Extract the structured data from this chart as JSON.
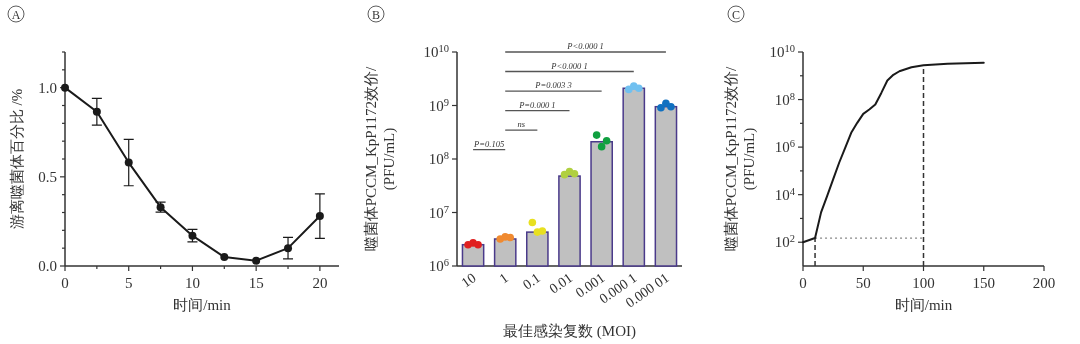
{
  "chart_data": [
    {
      "type": "line",
      "title": "A",
      "xlabel": "时间/min",
      "ylabel": "游离噬菌体百分比 /%",
      "x": [
        0,
        2.5,
        5,
        7.5,
        10,
        12.5,
        15,
        17.5,
        20
      ],
      "series": [
        {
          "color": "#1a1a1a",
          "values": [
            1.0,
            0.865,
            0.58,
            0.33,
            0.17,
            0.05,
            0.03,
            0.1,
            0.28
          ],
          "errors": [
            null,
            0.075,
            0.13,
            0.028,
            0.035,
            null,
            null,
            0.06,
            0.125
          ]
        }
      ],
      "xlim": [
        0,
        21.5
      ],
      "ylim": [
        0,
        1.2
      ],
      "xticks": [
        0,
        {
          "value": 2.5,
          "label": null
        },
        5,
        {
          "value": 7.5,
          "label": null
        },
        10,
        {
          "value": 12.5,
          "label": null
        },
        15,
        {
          "value": 17.5,
          "label": null
        },
        20
      ],
      "yticks": [
        {
          "value": 0,
          "label": "0.0"
        },
        {
          "value": 0.1,
          "label": null
        },
        {
          "value": 0.2,
          "label": null
        },
        {
          "value": 0.3,
          "label": null
        },
        {
          "value": 0.4,
          "label": null
        },
        0.5,
        {
          "value": 0.6,
          "label": null
        },
        {
          "value": 0.7,
          "label": null
        },
        {
          "value": 0.8,
          "label": null
        },
        {
          "value": 0.9,
          "label": null
        },
        {
          "value": 1.0,
          "label": "1.0"
        },
        {
          "value": 1.1,
          "label": null
        },
        {
          "value": 1.2,
          "label": null
        }
      ],
      "marker": "circle"
    },
    {
      "type": "bar",
      "title": "B",
      "xlabel": "最佳感染复数 (MOI)",
      "ylabel": "噬菌体PCCM_KpP1172效价/\n(PFU/mL)",
      "categories": [
        "10",
        "1",
        "0.1",
        "0.01",
        "0.001",
        "0.000 1",
        "0.000 01"
      ],
      "series": [
        {
          "type": "bar",
          "color": "#c0c0c0",
          "values": [
            2500000,
            3200000,
            4300000,
            48000000,
            210000000,
            2100000000,
            950000000
          ]
        },
        {
          "type": "scatter",
          "x": [
            "10",
            "10",
            "10",
            "1",
            "1",
            "1",
            "0.1",
            "0.1",
            "0.1",
            "0.01",
            "0.01",
            "0.01",
            "0.001",
            "0.001",
            "0.001",
            "0.000 1",
            "0.000 1",
            "0.000 1",
            "0.000 01",
            "0.000 01",
            "0.000 01"
          ],
          "values": [
            2500000,
            2700000,
            2500000,
            3200000,
            3500000,
            3400000,
            6500000,
            4300000,
            4500000,
            51000000,
            58000000,
            53000000,
            280000000,
            170000000,
            220000000,
            2000000000,
            2300000000,
            2100000000,
            910000000,
            1100000000,
            950000000
          ],
          "colors": [
            "#e02020",
            "#e02020",
            "#e02020",
            "#f08a30",
            "#f08a30",
            "#f08a30",
            "#e8e020",
            "#e8e020",
            "#e8e020",
            "#b0d040",
            "#b0d040",
            "#b0d040",
            "#10a040",
            "#10a040",
            "#10a040",
            "#70c0f0",
            "#70c0f0",
            "#70c0f0",
            "#1070c0",
            "#1070c0",
            "#1070c0"
          ]
        }
      ],
      "log": "y",
      "ylim": [
        1000000,
        10000000000
      ],
      "yticks": [
        {
          "value": 1000000,
          "label": "10$^{6}$"
        },
        {
          "value": 10000000,
          "label": "10$^{7}$"
        },
        {
          "value": 100000000,
          "label": "10$^{8}$"
        },
        {
          "value": 1000000000,
          "label": "10$^{9}$"
        },
        {
          "value": 10000000000,
          "label": "10$^{10}$"
        }
      ],
      "annotations": [
        "P=0.105",
        "ns",
        "P=0.000 1",
        "P=0.003 3",
        "P<0.000 1",
        "P<0.000 1"
      ]
    },
    {
      "type": "line",
      "title": "C",
      "xlabel": "时间/min",
      "ylabel": "噬菌体PCCM_KpP1172效价/\n(PFU/mL)",
      "x": [
        0,
        10,
        15,
        20,
        25,
        30,
        35,
        40,
        45,
        50,
        55,
        60,
        65,
        70,
        75,
        80,
        90,
        100,
        120,
        150
      ],
      "series": [
        {
          "color": "#1a1a1a",
          "values": [
            100,
            150,
            1800,
            8700,
            44000,
            220000,
            930000,
            4000000,
            10500000,
            25000000,
            38000000,
            62000000,
            190000000,
            630000000,
            1100000000,
            1550000000,
            2300000000,
            2750000000,
            3200000000,
            3500000000
          ]
        }
      ],
      "log": "y",
      "xlim": [
        0,
        200
      ],
      "ylim": [
        10,
        10000000000
      ],
      "xticks": [
        0,
        50,
        100,
        150,
        200
      ],
      "yticks": [
        {
          "value": 100,
          "label": "10$^{2}$"
        },
        {
          "value": 1000,
          "label": null
        },
        {
          "value": 10000,
          "label": "10$^{4}$"
        },
        {
          "value": 100000,
          "label": null
        },
        {
          "value": 1000000,
          "label": "10$^{6}$"
        },
        {
          "value": 10000000,
          "label": null
        },
        {
          "value": 100000000,
          "label": "10$^{8}$"
        },
        {
          "value": 1000000000,
          "label": null
        },
        {
          "value": 10000000000,
          "label": "10$^{10}$"
        }
      ],
      "ref_lines": [
        {
          "axis": "x",
          "value": 10,
          "line_style": "dashed",
          "color": "#333333"
        },
        {
          "axis": "x",
          "value": 100,
          "line_style": "dashed",
          "color": "#333333"
        },
        {
          "axis": "y",
          "value": 150,
          "line_style": "dotted",
          "color": "#888888"
        }
      ],
      "marker": "none"
    }
  ]
}
